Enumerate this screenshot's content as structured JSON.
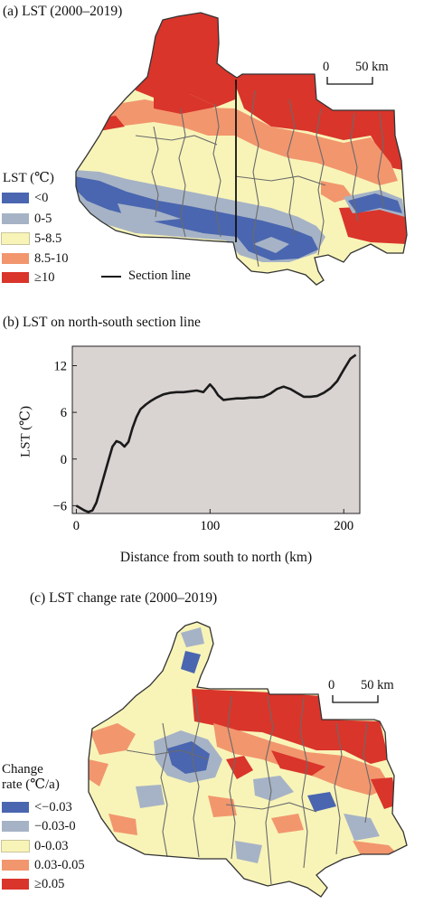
{
  "panel_a": {
    "title": "(a) LST (2000–2019)",
    "scale_bar": {
      "start": "0",
      "end": "50 km"
    },
    "legend_title": "LST (℃)",
    "legend": [
      {
        "label": "<0",
        "color": "#4a66b0"
      },
      {
        "label": "0-5",
        "color": "#a6b3c6"
      },
      {
        "label": "5-8.5",
        "color": "#f8f4b8"
      },
      {
        "label": "8.5-10",
        "color": "#f2966e"
      },
      {
        "label": "≥10",
        "color": "#d9352b"
      }
    ],
    "section_line_label": "Section line"
  },
  "panel_b": {
    "title": "(b) LST on north-south section line",
    "chart_data": {
      "type": "line",
      "xlabel": "Distance from south to north (km)",
      "ylabel": "LST (℃)",
      "xlim": [
        -3,
        212
      ],
      "ylim": [
        -7,
        14.5
      ],
      "xticks": [
        0,
        100,
        200
      ],
      "yticks": [
        -6,
        0,
        6,
        12
      ],
      "background": "#d9d3d2",
      "series": [
        {
          "x": [
            0,
            3,
            6,
            9,
            12,
            15,
            18,
            21,
            24,
            27,
            30,
            33,
            36,
            39,
            42,
            45,
            48,
            52,
            56,
            60,
            65,
            70,
            75,
            80,
            85,
            90,
            95,
            100,
            103,
            106,
            110,
            115,
            120,
            125,
            130,
            135,
            140,
            145,
            150,
            155,
            160,
            165,
            170,
            175,
            180,
            185,
            190,
            195,
            200,
            205,
            209
          ],
          "y": [
            -6.0,
            -6.3,
            -6.6,
            -6.8,
            -6.6,
            -5.6,
            -3.8,
            -2.0,
            -0.2,
            1.6,
            2.3,
            2.1,
            1.6,
            2.2,
            4.0,
            5.4,
            6.4,
            7.0,
            7.5,
            7.9,
            8.3,
            8.5,
            8.6,
            8.6,
            8.7,
            8.8,
            8.6,
            9.6,
            9.0,
            8.2,
            7.6,
            7.7,
            7.8,
            7.8,
            7.9,
            7.9,
            8.0,
            8.4,
            9.0,
            9.3,
            9.0,
            8.5,
            8.0,
            8.0,
            8.1,
            8.5,
            9.1,
            10.0,
            11.5,
            12.9,
            13.4
          ]
        }
      ]
    }
  },
  "panel_c": {
    "title": "(c) LST change rate (2000–2019)",
    "scale_bar": {
      "start": "0",
      "end": "50 km"
    },
    "legend_title_line1": "Change",
    "legend_title_line2": "rate (℃/a)",
    "legend": [
      {
        "label": "<−0.03",
        "color": "#4a66b0"
      },
      {
        "label": "−0.03-0",
        "color": "#a6b3c6"
      },
      {
        "label": "0-0.03",
        "color": "#f8f4b8"
      },
      {
        "label": "0.03-0.05",
        "color": "#f2966e"
      },
      {
        "label": "≥0.05",
        "color": "#d9352b"
      }
    ]
  }
}
